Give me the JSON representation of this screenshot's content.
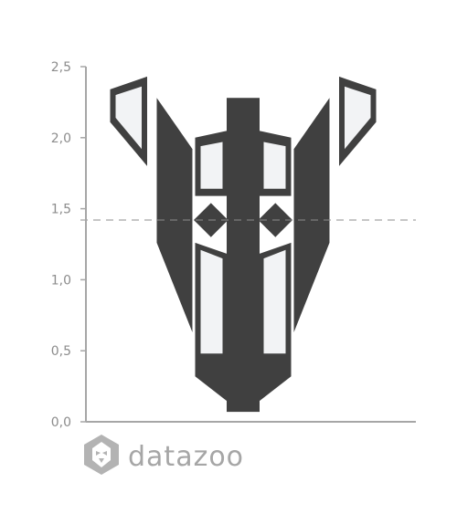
{
  "chart_data": {
    "type": "bar",
    "title": "",
    "xlabel": "",
    "ylabel": "",
    "ylim": [
      0,
      2.5
    ],
    "y_ticks": [
      "0,0",
      "0,5",
      "1,0",
      "1,5",
      "2,0",
      "2,5"
    ],
    "reference_line": {
      "value": 1.42,
      "style": "dashed"
    },
    "grid": false,
    "legend": "none",
    "colors": {
      "dark": "#404040",
      "light": "#f2f3f5",
      "axis": "#a6a6a6",
      "text": "#8c8c8c"
    },
    "shapes": [
      {
        "name": "center-bar",
        "fill": "dark",
        "points": [
          [
            0.0,
            0.07
          ],
          [
            0.0,
            2.28
          ]
        ],
        "half_width": 0.24
      },
      {
        "name": "left-outer-band",
        "fill": "dark",
        "points": [
          [
            -1.26,
            2.28
          ],
          [
            -0.74,
            1.92
          ],
          [
            -0.74,
            0.63
          ],
          [
            -1.26,
            1.26
          ]
        ]
      },
      {
        "name": "right-outer-band",
        "fill": "dark",
        "points": [
          [
            1.26,
            2.28
          ],
          [
            0.74,
            1.92
          ],
          [
            0.74,
            0.63
          ],
          [
            1.26,
            1.26
          ]
        ]
      },
      {
        "name": "left-ear",
        "fill": "dark",
        "points": [
          [
            -1.94,
            2.34
          ],
          [
            -1.4,
            2.43
          ],
          [
            -1.4,
            1.8
          ],
          [
            -1.94,
            2.11
          ]
        ]
      },
      {
        "name": "right-ear",
        "fill": "dark",
        "points": [
          [
            1.94,
            2.34
          ],
          [
            1.4,
            2.43
          ],
          [
            1.4,
            1.8
          ],
          [
            1.94,
            2.11
          ]
        ]
      },
      {
        "name": "left-eye",
        "fill": "dark",
        "points": [
          [
            -0.7,
            2.0
          ],
          [
            -0.22,
            2.05
          ],
          [
            -0.22,
            1.59
          ],
          [
            -0.7,
            1.59
          ]
        ]
      },
      {
        "name": "right-eye",
        "fill": "dark",
        "points": [
          [
            0.7,
            2.0
          ],
          [
            0.22,
            2.05
          ],
          [
            0.22,
            1.59
          ],
          [
            0.7,
            1.59
          ]
        ]
      },
      {
        "name": "left-diamond",
        "fill": "dark",
        "points": [
          [
            -0.47,
            1.54
          ],
          [
            -0.22,
            1.42
          ],
          [
            -0.47,
            1.3
          ],
          [
            -0.72,
            1.42
          ]
        ]
      },
      {
        "name": "right-diamond",
        "fill": "dark",
        "points": [
          [
            0.47,
            1.54
          ],
          [
            0.22,
            1.42
          ],
          [
            0.47,
            1.3
          ],
          [
            0.72,
            1.42
          ]
        ]
      },
      {
        "name": "left-cheek",
        "fill": "dark",
        "points": [
          [
            -0.7,
            1.26
          ],
          [
            -0.22,
            1.18
          ],
          [
            -0.22,
            0.14
          ],
          [
            -0.7,
            0.32
          ]
        ]
      },
      {
        "name": "right-cheek",
        "fill": "dark",
        "points": [
          [
            0.7,
            1.26
          ],
          [
            0.22,
            1.18
          ],
          [
            0.22,
            0.14
          ],
          [
            0.7,
            0.32
          ]
        ]
      },
      {
        "name": "left-ear-inner",
        "fill": "light",
        "points": [
          [
            -1.86,
            2.3
          ],
          [
            -1.48,
            2.36
          ],
          [
            -1.48,
            1.92
          ],
          [
            -1.86,
            2.14
          ]
        ]
      },
      {
        "name": "right-ear-inner",
        "fill": "light",
        "points": [
          [
            1.86,
            2.3
          ],
          [
            1.48,
            2.36
          ],
          [
            1.48,
            1.92
          ],
          [
            1.86,
            2.14
          ]
        ]
      },
      {
        "name": "left-eye-inner",
        "fill": "light",
        "points": [
          [
            -0.62,
            1.94
          ],
          [
            -0.3,
            1.97
          ],
          [
            -0.3,
            1.64
          ],
          [
            -0.62,
            1.64
          ]
        ]
      },
      {
        "name": "right-eye-inner",
        "fill": "light",
        "points": [
          [
            0.62,
            1.94
          ],
          [
            0.3,
            1.97
          ],
          [
            0.3,
            1.64
          ],
          [
            0.62,
            1.64
          ]
        ]
      },
      {
        "name": "left-cheek-inner",
        "fill": "light",
        "points": [
          [
            -0.62,
            1.21
          ],
          [
            -0.3,
            1.15
          ],
          [
            -0.3,
            0.48
          ],
          [
            -0.62,
            0.48
          ]
        ]
      },
      {
        "name": "right-cheek-inner",
        "fill": "light",
        "points": [
          [
            0.62,
            1.21
          ],
          [
            0.3,
            1.15
          ],
          [
            0.3,
            0.48
          ],
          [
            0.62,
            0.48
          ]
        ]
      }
    ]
  },
  "watermark": {
    "text": "datazoo",
    "icon": "lion-head-icon"
  }
}
